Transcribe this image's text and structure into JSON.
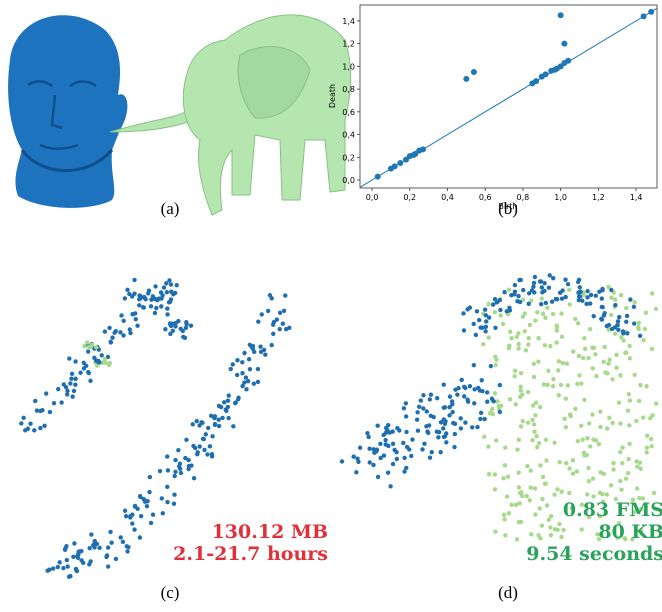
{
  "chart_data": {
    "type": "scatter",
    "x_label": "Birth",
    "y_label": "Death",
    "color": "#1f77b4",
    "diagonal": true,
    "x": [
      0.03,
      0.1,
      0.12,
      0.15,
      0.18,
      0.2,
      0.22,
      0.23,
      0.25,
      0.27,
      0.5,
      0.54,
      0.85,
      0.87,
      0.9,
      0.92,
      0.95,
      0.97,
      0.98,
      1.0,
      1.02,
      1.0,
      1.02,
      1.04,
      1.44,
      1.48
    ],
    "y": [
      0.03,
      0.1,
      0.12,
      0.15,
      0.18,
      0.21,
      0.22,
      0.23,
      0.26,
      0.27,
      0.89,
      0.95,
      0.85,
      0.87,
      0.91,
      0.93,
      0.96,
      0.97,
      0.98,
      1.45,
      1.2,
      1.0,
      1.03,
      1.05,
      1.44,
      1.48
    ],
    "xlim": [
      -0.064,
      1.511
    ],
    "ylim": [
      -0.07,
      1.54
    ],
    "xticks": [
      {
        "value": 0,
        "label": "0,0"
      },
      {
        "value": 0.2,
        "label": "0,2"
      },
      {
        "value": 0.4,
        "label": "0,4"
      },
      {
        "value": 0.6,
        "label": "0,6"
      },
      {
        "value": 0.8,
        "label": "0,8"
      },
      {
        "value": 1,
        "label": "1,0"
      },
      {
        "value": 1.2,
        "label": "1,2"
      },
      {
        "value": 1.4,
        "label": "1,4"
      }
    ],
    "yticks": [
      {
        "value": 0,
        "label": "0,0"
      },
      {
        "value": 0.2,
        "label": "0,2"
      },
      {
        "value": 0.4,
        "label": "0,4"
      },
      {
        "value": 0.6,
        "label": "0,6"
      },
      {
        "value": 0.8,
        "label": "0,8"
      },
      {
        "value": 1,
        "label": "1,0"
      },
      {
        "value": 1.2,
        "label": "1,2"
      },
      {
        "value": 1.4,
        "label": "1,4"
      }
    ]
  },
  "captions": [
    "(a)",
    "(b)",
    "(c)",
    "(d)"
  ],
  "annotations_c": [
    "130.12 MB",
    "2.1-21.7 hours"
  ],
  "annotations_d": [
    "0.83 FMS",
    "80 KB",
    "9.54 seconds"
  ]
}
